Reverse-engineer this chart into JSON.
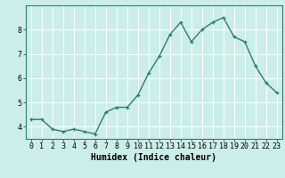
{
  "x": [
    0,
    1,
    2,
    3,
    4,
    5,
    6,
    7,
    8,
    9,
    10,
    11,
    12,
    13,
    14,
    15,
    16,
    17,
    18,
    19,
    20,
    21,
    22,
    23
  ],
  "y": [
    4.3,
    4.3,
    3.9,
    3.8,
    3.9,
    3.8,
    3.7,
    4.6,
    4.8,
    4.8,
    5.3,
    6.2,
    6.9,
    7.8,
    8.3,
    7.5,
    8.0,
    8.3,
    8.5,
    7.7,
    7.5,
    6.5,
    5.8,
    5.4
  ],
  "line_color": "#2e7d6e",
  "marker": "+",
  "markersize": 3,
  "linewidth": 1.0,
  "background_color": "#cceee8",
  "grid_color": "#ffffff",
  "xlabel": "Humidex (Indice chaleur)",
  "xlabel_fontsize": 7,
  "tick_fontsize": 6,
  "ylim": [
    3.5,
    9.0
  ],
  "yticks": [
    4,
    5,
    6,
    7,
    8
  ],
  "xticks": [
    0,
    1,
    2,
    3,
    4,
    5,
    6,
    7,
    8,
    9,
    10,
    11,
    12,
    13,
    14,
    15,
    16,
    17,
    18,
    19,
    20,
    21,
    22,
    23
  ]
}
